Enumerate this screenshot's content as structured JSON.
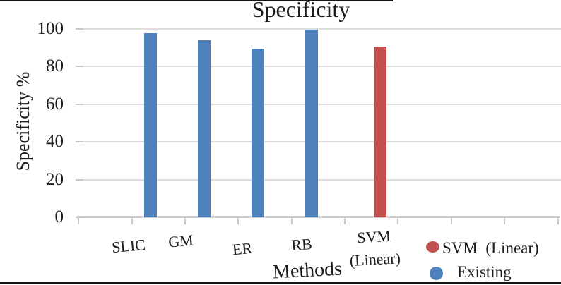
{
  "figure": {
    "title": "Specificity",
    "y_axis": {
      "label": "Specificity %",
      "tick_labels": [
        "100",
        "80",
        "60",
        "40",
        "20",
        "0"
      ]
    },
    "x_axis": {
      "label": "Methods",
      "categories": [
        "SLIC",
        "GM",
        "ER",
        "RB",
        "SVM (Linear)"
      ]
    },
    "legend": {
      "items": [
        {
          "label": "SVM  (Linear)",
          "color": "#C0504D"
        },
        {
          "label": "Existing",
          "color": "#4F81BD"
        }
      ]
    }
  },
  "chart_data": {
    "type": "bar",
    "title": "Specificity",
    "xlabel": "Methods",
    "ylabel": "Specificity %",
    "ylim": [
      0,
      100
    ],
    "yticks": [
      0,
      20,
      40,
      60,
      80,
      100
    ],
    "grid": true,
    "legend_position": "bottom-right",
    "categories": [
      "SLIC",
      "GM",
      "ER",
      "RB",
      "SVM (Linear)"
    ],
    "series": [
      {
        "name": "SVM (Linear)",
        "color": "#C0504D",
        "values": [
          null,
          null,
          null,
          null,
          90.5
        ]
      },
      {
        "name": "Existing",
        "color": "#4F81BD",
        "values": [
          97.8,
          94,
          89.5,
          99.6,
          null
        ]
      }
    ]
  },
  "colors": {
    "existing_blue": "#4F81BD",
    "svm_red": "#C0504D",
    "gridline": "#DEDEDE",
    "axis": "#C9C9C9",
    "text": "#1C1C1C",
    "border_rule": "#141414"
  }
}
